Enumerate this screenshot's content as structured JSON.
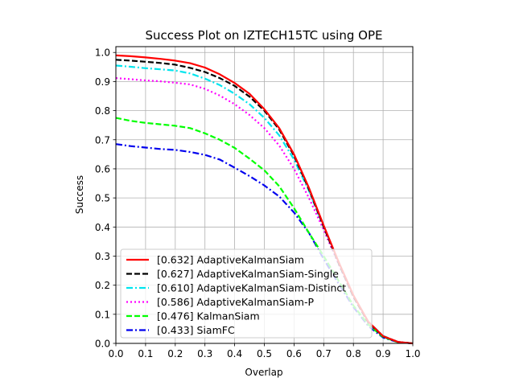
{
  "chart_data": {
    "type": "line",
    "title": "Success Plot on IZTECH15TC using OPE",
    "xlabel": "Overlap",
    "ylabel": "Success",
    "xlim": [
      0,
      1
    ],
    "ylim": [
      0,
      1.02
    ],
    "xticks": [
      "0.0",
      "0.1",
      "0.2",
      "0.3",
      "0.4",
      "0.5",
      "0.6",
      "0.7",
      "0.8",
      "0.9",
      "1.0"
    ],
    "yticks": [
      "0.0",
      "0.1",
      "0.2",
      "0.3",
      "0.4",
      "0.5",
      "0.6",
      "0.7",
      "0.8",
      "0.9",
      "1.0"
    ],
    "grid": true,
    "legend_position": "lower-left",
    "x": [
      0.0,
      0.05,
      0.1,
      0.15,
      0.2,
      0.25,
      0.3,
      0.35,
      0.4,
      0.45,
      0.5,
      0.55,
      0.6,
      0.65,
      0.7,
      0.75,
      0.8,
      0.85,
      0.9,
      0.95,
      1.0
    ],
    "series": [
      {
        "name": "[0.632] AdaptiveKalmanSiam",
        "color": "#ff0000",
        "dash": "solid",
        "values": [
          0.99,
          0.987,
          0.983,
          0.978,
          0.972,
          0.963,
          0.948,
          0.925,
          0.895,
          0.858,
          0.805,
          0.74,
          0.65,
          0.535,
          0.405,
          0.28,
          0.165,
          0.075,
          0.025,
          0.005,
          0.0
        ]
      },
      {
        "name": "[0.627] AdaptiveKalmanSiam-Single",
        "color": "#000000",
        "dash": "dashed",
        "values": [
          0.975,
          0.972,
          0.968,
          0.964,
          0.958,
          0.947,
          0.933,
          0.912,
          0.885,
          0.848,
          0.8,
          0.735,
          0.645,
          0.53,
          0.4,
          0.275,
          0.16,
          0.072,
          0.024,
          0.005,
          0.0
        ]
      },
      {
        "name": "[0.610] AdaptiveKalmanSiam-Distinct",
        "color": "#00e5ee",
        "dash": "dashdot",
        "values": [
          0.955,
          0.951,
          0.946,
          0.942,
          0.938,
          0.928,
          0.91,
          0.888,
          0.858,
          0.822,
          0.775,
          0.715,
          0.632,
          0.525,
          0.4,
          0.28,
          0.165,
          0.075,
          0.026,
          0.005,
          0.0
        ]
      },
      {
        "name": "[0.586] AdaptiveKalmanSiam-P",
        "color": "#ff00ff",
        "dash": "dotted",
        "values": [
          0.912,
          0.908,
          0.904,
          0.901,
          0.896,
          0.89,
          0.875,
          0.852,
          0.822,
          0.785,
          0.74,
          0.68,
          0.6,
          0.5,
          0.39,
          0.272,
          0.16,
          0.072,
          0.025,
          0.005,
          0.0
        ]
      },
      {
        "name": "[0.476] KalmanSiam",
        "color": "#00ff00",
        "dash": "dashed",
        "values": [
          0.775,
          0.765,
          0.758,
          0.753,
          0.748,
          0.74,
          0.722,
          0.7,
          0.672,
          0.635,
          0.595,
          0.54,
          0.465,
          0.38,
          0.3,
          0.215,
          0.13,
          0.065,
          0.022,
          0.004,
          0.0
        ]
      },
      {
        "name": "[0.433] SiamFC",
        "color": "#0000ee",
        "dash": "dashdot",
        "values": [
          0.685,
          0.678,
          0.673,
          0.668,
          0.665,
          0.658,
          0.648,
          0.632,
          0.604,
          0.575,
          0.543,
          0.505,
          0.45,
          0.38,
          0.29,
          0.205,
          0.125,
          0.06,
          0.02,
          0.004,
          0.0
        ]
      }
    ]
  }
}
